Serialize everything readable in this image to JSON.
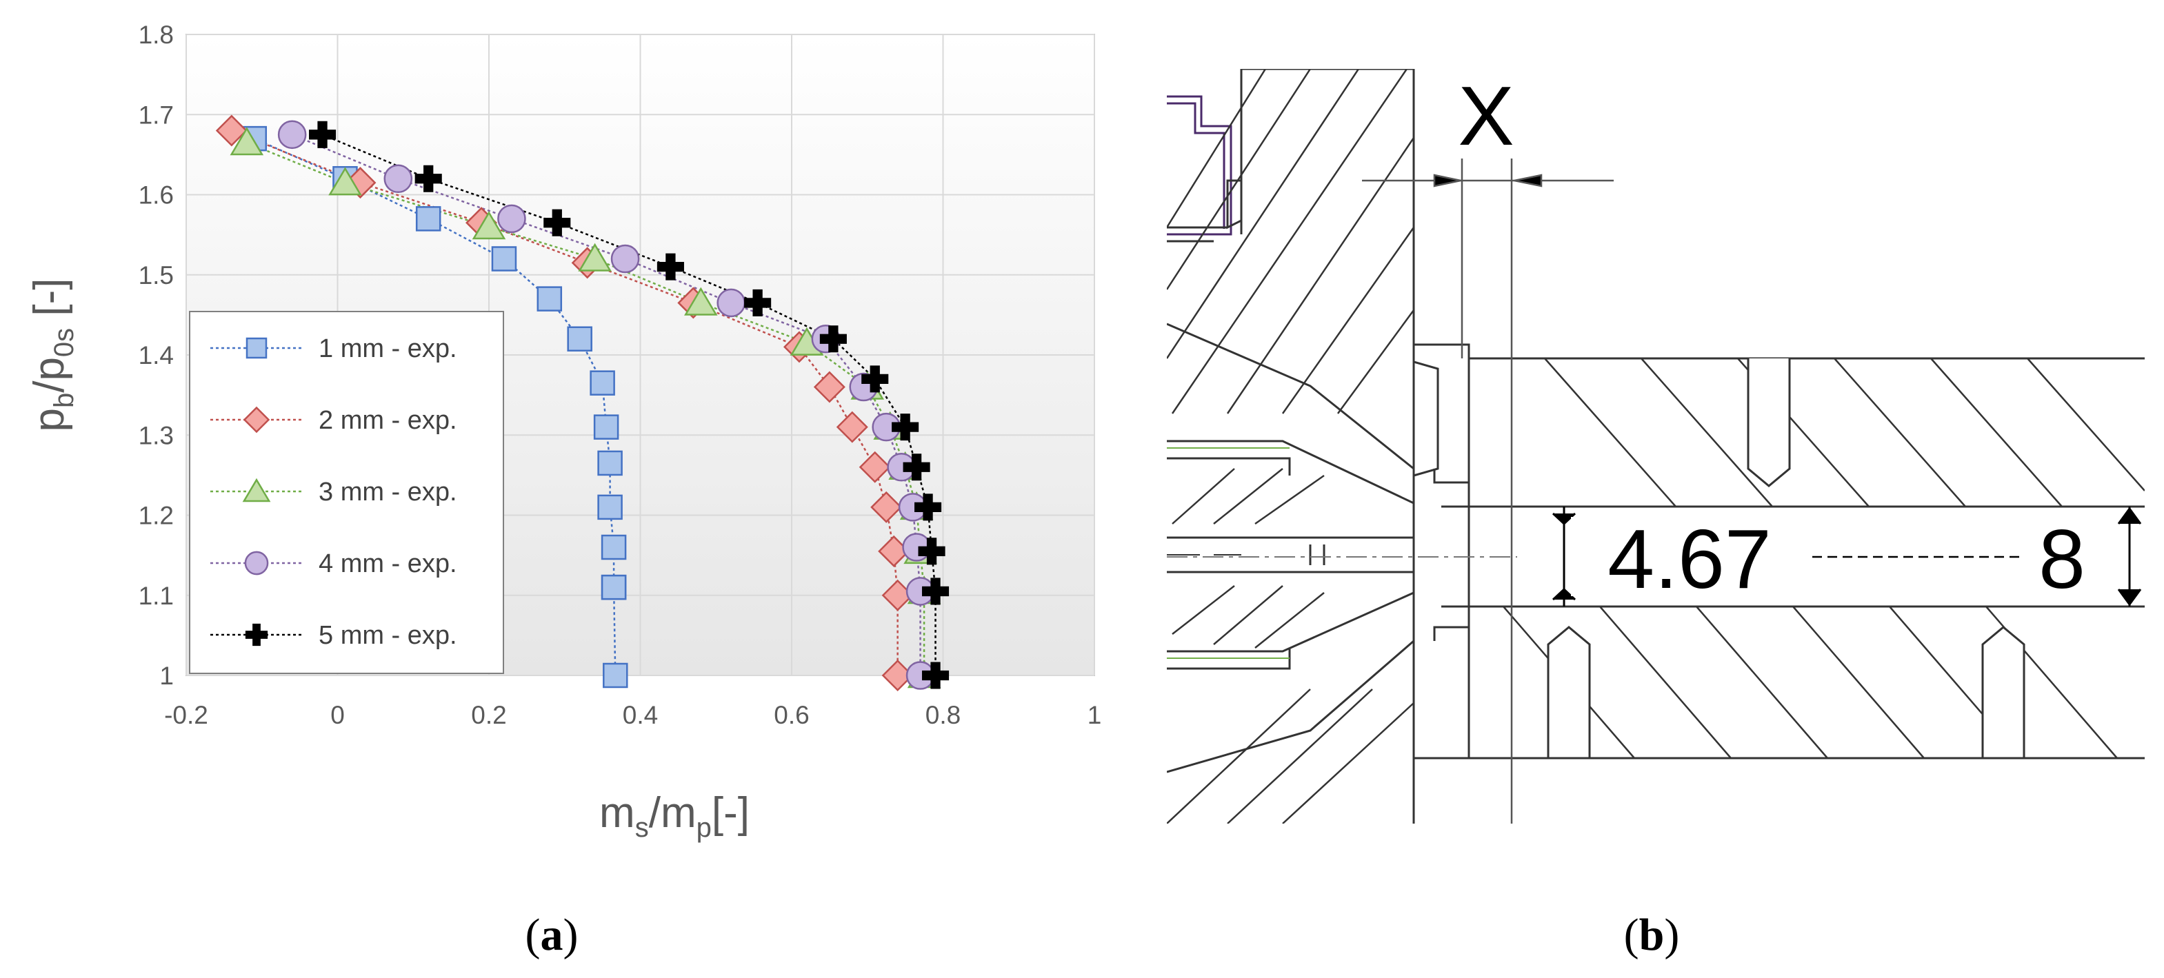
{
  "panels": {
    "a_label_open": "(",
    "a_label_letter": "a",
    "a_label_close": ")",
    "b_label_open": "(",
    "b_label_letter": "b",
    "b_label_close": ")"
  },
  "chart_data": {
    "type": "scatter",
    "xlabel": {
      "main1": "m",
      "sub1": "s",
      "slash": "/",
      "main2": "m",
      "sub2": "p",
      "unit": "[-]"
    },
    "ylabel": {
      "main1": "p",
      "sub1": "b",
      "slash": "/",
      "main2": "p",
      "sub2": "0s",
      "unit": " [-]"
    },
    "xlim": [
      -0.2,
      1
    ],
    "ylim": [
      1,
      1.8
    ],
    "xticks": [
      -0.2,
      0,
      0.2,
      0.4,
      0.6,
      0.8,
      1
    ],
    "xtick_labels": [
      "-0.2",
      "0",
      "0.2",
      "0.4",
      "0.6",
      "0.8",
      "1"
    ],
    "yticks": [
      1,
      1.1,
      1.2,
      1.3,
      1.4,
      1.5,
      1.6,
      1.7,
      1.8
    ],
    "ytick_labels": [
      "1",
      "1.1",
      "1.2",
      "1.3",
      "1.4",
      "1.5",
      "1.6",
      "1.7",
      "1.8"
    ],
    "grid": true,
    "legend_position": "left",
    "series": [
      {
        "name": "1 mm - exp.",
        "marker": "square",
        "color": "#4472c4",
        "fill": "#a9c4eb",
        "x": [
          -0.11,
          0.01,
          0.12,
          0.22,
          0.28,
          0.32,
          0.35,
          0.355,
          0.36,
          0.36,
          0.365,
          0.365,
          0.365,
          0.367
        ],
        "y": [
          1.67,
          1.62,
          1.57,
          1.52,
          1.47,
          1.42,
          1.365,
          1.31,
          1.265,
          1.21,
          1.16,
          1.11,
          1.11,
          1.0
        ]
      },
      {
        "name": "2 mm - exp.",
        "marker": "diamond",
        "color": "#c0504d",
        "fill": "#f4a6a2",
        "x": [
          -0.14,
          0.03,
          0.19,
          0.33,
          0.47,
          0.61,
          0.65,
          0.68,
          0.71,
          0.725,
          0.735,
          0.74,
          0.74
        ],
        "y": [
          1.68,
          1.615,
          1.565,
          1.515,
          1.465,
          1.41,
          1.36,
          1.31,
          1.26,
          1.21,
          1.155,
          1.1,
          1.0
        ]
      },
      {
        "name": "3 mm - exp.",
        "marker": "triangle",
        "color": "#70ad47",
        "fill": "#c4e0a8",
        "x": [
          -0.12,
          0.01,
          0.2,
          0.34,
          0.48,
          0.62,
          0.7,
          0.73,
          0.75,
          0.765,
          0.77,
          0.775,
          0.775
        ],
        "y": [
          1.665,
          1.615,
          1.56,
          1.52,
          1.465,
          1.415,
          1.36,
          1.31,
          1.26,
          1.21,
          1.155,
          1.105,
          1.0
        ]
      },
      {
        "name": "4 mm - exp.",
        "marker": "circle",
        "color": "#8064a2",
        "fill": "#c9b8e2",
        "x": [
          -0.06,
          0.08,
          0.23,
          0.38,
          0.52,
          0.645,
          0.695,
          0.725,
          0.745,
          0.76,
          0.765,
          0.77,
          0.77
        ],
        "y": [
          1.675,
          1.62,
          1.57,
          1.52,
          1.465,
          1.42,
          1.36,
          1.31,
          1.26,
          1.21,
          1.16,
          1.105,
          1.0
        ]
      },
      {
        "name": "5 mm - exp.",
        "marker": "plus",
        "color": "#000000",
        "fill": "#000000",
        "x": [
          -0.02,
          0.12,
          0.29,
          0.44,
          0.555,
          0.655,
          0.71,
          0.75,
          0.765,
          0.78,
          0.785,
          0.79,
          0.79
        ],
        "y": [
          1.675,
          1.62,
          1.565,
          1.51,
          1.465,
          1.42,
          1.37,
          1.31,
          1.26,
          1.21,
          1.155,
          1.105,
          1.0
        ]
      }
    ]
  },
  "drawing": {
    "dim_x_label": "X",
    "dim_inner": "4.67",
    "dim_outer": "8"
  }
}
